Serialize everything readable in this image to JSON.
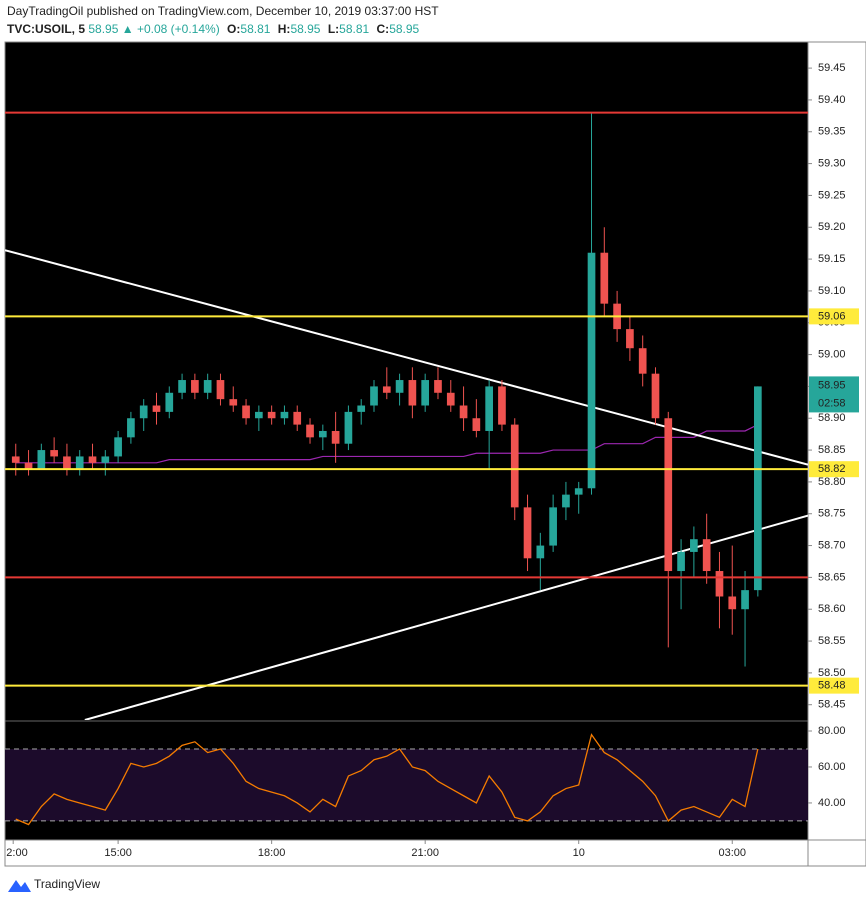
{
  "chart_data": {
    "type": "candlestick",
    "title": "DayTradingOil published on TradingView.com, December 10, 2019 03:37:00 HST",
    "symbol": "TVC:USOIL, 5",
    "last": 58.95,
    "change_arrow": "▲",
    "change": "+0.08 (+0.14%)",
    "ohlc_legend": [
      {
        "label": "O:",
        "value": 58.81
      },
      {
        "label": "H:",
        "value": 58.95
      },
      {
        "label": "L:",
        "value": 58.81
      },
      {
        "label": "C:",
        "value": 58.95
      }
    ],
    "up_color": "#26a69a",
    "down_color": "#ef5350",
    "xlim": [
      12.79,
      28.48
    ],
    "xticks": [
      {
        "value": 12.95,
        "label": "2:00"
      },
      {
        "value": 15,
        "label": "15:00"
      },
      {
        "value": 18,
        "label": "18:00"
      },
      {
        "value": 21,
        "label": "21:00"
      },
      {
        "value": 24,
        "label": "10"
      },
      {
        "value": 27,
        "label": "03:00"
      }
    ],
    "ylim": [
      58.426,
      59.491
    ],
    "yticks": [
      58.45,
      {
        "value": 58.5,
        "label": "58.50"
      },
      58.55,
      {
        "value": 58.6,
        "label": "58.60"
      },
      58.65,
      {
        "value": 58.7,
        "label": "58.70"
      },
      58.75,
      {
        "value": 58.8,
        "label": "58.80"
      },
      58.85,
      {
        "value": 58.9,
        "label": "58.90"
      },
      58.95,
      {
        "value": 59.0,
        "label": "59.00"
      },
      59.05,
      {
        "value": 59.1,
        "label": "59.10"
      },
      59.15,
      {
        "value": 59.2,
        "label": "59.20"
      },
      59.25,
      {
        "value": 59.3,
        "label": "59.30"
      },
      59.35,
      {
        "value": 59.4,
        "label": "59.40"
      },
      59.45
    ],
    "x": [
      13,
      13.25,
      13.5,
      13.75,
      14,
      14.25,
      14.5,
      14.75,
      15,
      15.25,
      15.5,
      15.75,
      16,
      16.25,
      16.5,
      16.75,
      17,
      17.25,
      17.5,
      17.75,
      18,
      18.25,
      18.5,
      18.75,
      19,
      19.25,
      19.5,
      19.75,
      20,
      20.25,
      20.5,
      20.75,
      21,
      21.25,
      21.5,
      21.75,
      22,
      22.25,
      22.5,
      22.75,
      23,
      23.25,
      23.5,
      23.75,
      24,
      24.25,
      24.5,
      24.75,
      25,
      25.25,
      25.5,
      25.75,
      26,
      26.25,
      26.5,
      26.75,
      27,
      27.25,
      27.5
    ],
    "open": [
      58.84,
      58.83,
      58.82,
      58.85,
      58.84,
      58.82,
      58.84,
      58.83,
      58.84,
      58.87,
      58.9,
      58.92,
      58.91,
      58.94,
      58.96,
      58.94,
      58.96,
      58.93,
      58.92,
      58.9,
      58.91,
      58.9,
      58.91,
      58.89,
      58.87,
      58.88,
      58.86,
      58.91,
      58.92,
      58.95,
      58.94,
      58.96,
      58.92,
      58.96,
      58.94,
      58.92,
      58.9,
      58.88,
      58.95,
      58.89,
      58.76,
      58.68,
      58.7,
      58.76,
      58.78,
      58.79,
      59.16,
      59.08,
      59.04,
      59.01,
      58.97,
      58.9,
      58.66,
      58.69,
      58.71,
      58.66,
      58.62,
      58.6,
      58.63
    ],
    "high": [
      58.86,
      58.85,
      58.86,
      58.87,
      58.86,
      58.85,
      58.86,
      58.85,
      58.88,
      58.91,
      58.93,
      58.94,
      58.95,
      58.97,
      58.97,
      58.97,
      58.97,
      58.95,
      58.93,
      58.92,
      58.92,
      58.92,
      58.92,
      58.9,
      58.89,
      58.91,
      58.92,
      58.93,
      58.96,
      58.98,
      58.97,
      58.98,
      58.97,
      58.98,
      58.96,
      58.95,
      58.93,
      58.96,
      58.96,
      58.9,
      58.78,
      58.72,
      58.78,
      58.8,
      58.8,
      59.38,
      59.2,
      59.1,
      59.06,
      59.03,
      58.98,
      58.91,
      58.71,
      58.73,
      58.75,
      58.69,
      58.7,
      58.66,
      58.95
    ],
    "low": [
      58.81,
      58.81,
      58.82,
      58.83,
      58.81,
      58.81,
      58.82,
      58.81,
      58.83,
      58.86,
      58.88,
      58.89,
      58.9,
      58.93,
      58.93,
      58.93,
      58.92,
      58.91,
      58.89,
      58.88,
      58.89,
      58.89,
      58.88,
      58.86,
      58.85,
      58.83,
      58.85,
      58.89,
      58.91,
      58.93,
      58.92,
      58.9,
      58.91,
      58.93,
      58.91,
      58.88,
      58.87,
      58.82,
      58.88,
      58.74,
      58.66,
      58.63,
      58.69,
      58.74,
      58.75,
      58.78,
      59.06,
      59.02,
      58.99,
      58.95,
      58.89,
      58.54,
      58.6,
      58.65,
      58.64,
      58.57,
      58.56,
      58.51,
      58.62
    ],
    "close": [
      58.83,
      58.82,
      58.85,
      58.84,
      58.82,
      58.84,
      58.83,
      58.84,
      58.87,
      58.9,
      58.92,
      58.91,
      58.94,
      58.96,
      58.94,
      58.96,
      58.93,
      58.92,
      58.9,
      58.91,
      58.9,
      58.91,
      58.89,
      58.87,
      58.88,
      58.86,
      58.91,
      58.92,
      58.95,
      58.94,
      58.96,
      58.92,
      58.96,
      58.94,
      58.92,
      58.9,
      58.88,
      58.95,
      58.89,
      58.76,
      58.68,
      58.7,
      58.76,
      58.78,
      58.79,
      59.16,
      59.08,
      59.04,
      59.01,
      58.97,
      58.9,
      58.66,
      58.69,
      58.71,
      58.66,
      58.62,
      58.6,
      58.63,
      58.95
    ],
    "moving_average": {
      "color": "#9c27b0",
      "values": [
        58.83,
        58.83,
        58.83,
        58.83,
        58.83,
        58.83,
        58.83,
        58.83,
        58.83,
        58.83,
        58.83,
        58.83,
        58.835,
        58.835,
        58.835,
        58.835,
        58.835,
        58.835,
        58.835,
        58.835,
        58.835,
        58.835,
        58.835,
        58.835,
        58.84,
        58.84,
        58.84,
        58.84,
        58.84,
        58.84,
        58.84,
        58.84,
        58.84,
        58.84,
        58.84,
        58.84,
        58.845,
        58.845,
        58.845,
        58.845,
        58.845,
        58.845,
        58.85,
        58.85,
        58.85,
        58.85,
        58.86,
        58.86,
        58.86,
        58.86,
        58.87,
        58.87,
        58.87,
        58.87,
        58.88,
        58.88,
        58.88,
        58.88,
        58.89
      ]
    },
    "price_lines": [
      {
        "value": 59.38,
        "color": "#e53935"
      },
      {
        "value": 59.06,
        "color": "#ffeb3b",
        "labeled": true
      },
      {
        "value": 58.82,
        "color": "#ffeb3b",
        "labeled": true
      },
      {
        "value": 58.65,
        "color": "#e53935"
      },
      {
        "value": 58.48,
        "color": "#ffeb3b",
        "labeled": true
      }
    ],
    "trendlines": [
      {
        "color": "#ffffff",
        "x": [
          12.79,
          28.48
        ],
        "y": [
          59.164,
          58.827
        ]
      },
      {
        "color": "#ffffff",
        "x": [
          14.35,
          28.48
        ],
        "y": [
          58.426,
          58.747
        ]
      }
    ],
    "countdown": "02:58",
    "rsi": {
      "color": "#f57c00",
      "ylim": [
        19.4,
        85
      ],
      "bands": [
        70,
        30
      ],
      "yticks": [
        {
          "value": 80,
          "label": "80.00"
        },
        {
          "value": 60,
          "label": "60.00"
        },
        {
          "value": 40,
          "label": "40.00"
        }
      ],
      "values": [
        31,
        28,
        38,
        45,
        42,
        40,
        38,
        36,
        48,
        62,
        60,
        62,
        66,
        72,
        74,
        68,
        70,
        62,
        52,
        48,
        46,
        44,
        40,
        35,
        42,
        38,
        55,
        58,
        64,
        66,
        70,
        60,
        58,
        52,
        48,
        44,
        40,
        55,
        46,
        32,
        30,
        35,
        44,
        48,
        50,
        78,
        68,
        64,
        58,
        52,
        44,
        30,
        36,
        38,
        35,
        32,
        42,
        38,
        70
      ]
    },
    "footer": "TradingView"
  }
}
